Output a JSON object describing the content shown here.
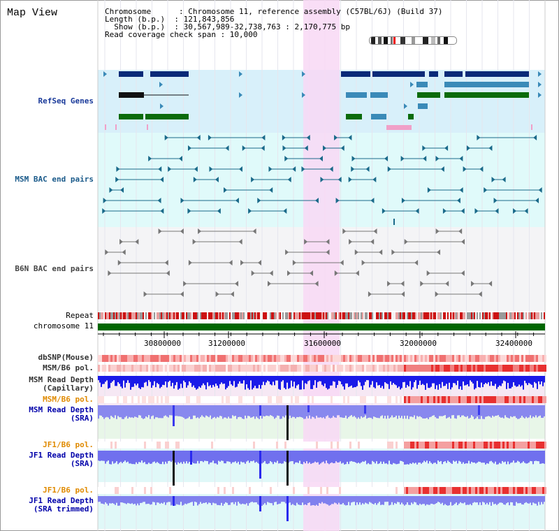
{
  "title": "Map View",
  "header": {
    "line1": "Chromosome      : Chromosome 11, reference assembly (C57BL/6J) (Build 37)",
    "line2": "Length (b.p.)  : 121,843,856",
    "line3": "  Show (b.p.)  : 30,567,989-32,738,763 : 2,170,775 bp",
    "line4": "Read coverage check span : 10,000"
  },
  "axis": {
    "ticks": [
      "30800000",
      "31200000",
      "31600000",
      "32000000",
      "32400000"
    ]
  },
  "tracks": {
    "refseq": "RefSeq Genes",
    "msm_bac": "MSM BAC end pairs",
    "b6n_bac": "B6N BAC end pairs",
    "repeat": "Repeat",
    "chromosome": "chromosome 11",
    "dbsnp": "dbSNP(Mouse)",
    "msm_pol": "MSM/B6 pol.",
    "msm_depth_cap": "MSM Read Depth\n(Capillary)",
    "msm_pol2": "MSM/B6 pol.",
    "msm_depth_sra": "MSM Read Depth\n(SRA)",
    "jf1_pol": "JF1/B6 pol.",
    "jf1_depth_sra": "JF1 Read Depth\n(SRA)",
    "jf1_pol2": "JF1/B6 pol.",
    "jf1_depth_trim": "JF1 Read Depth\n(SRA trimmed)"
  },
  "colors": {
    "navy": "#0a2a78",
    "teal": "#1a6a8a",
    "green": "#0b6b0b",
    "highlight": "#f8d8f4",
    "sra_label": "#0000aa",
    "pol_label": "#e08a00"
  }
}
